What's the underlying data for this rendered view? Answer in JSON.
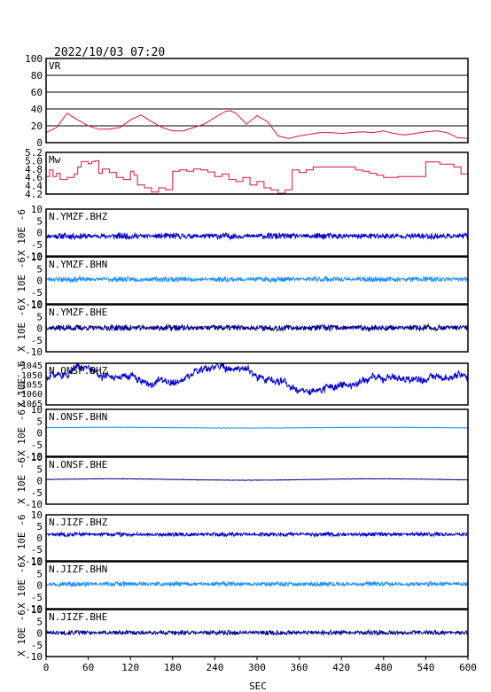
{
  "header": {
    "timestamp": "2022/10/03 07:20"
  },
  "xaxis": {
    "label": "SEC",
    "ticks": [
      0,
      60,
      120,
      180,
      240,
      300,
      360,
      420,
      480,
      540,
      600
    ]
  },
  "colors": {
    "vr": "#dc143c",
    "mw": "#dc143c",
    "dark_blue": "#00008b",
    "blue": "#0000cd",
    "light_blue": "#1e90ff",
    "frame": "#000000"
  },
  "chart_data": [
    {
      "type": "line",
      "title": "VR",
      "ylim": [
        0,
        100
      ],
      "grid": true,
      "y_ticks": [
        "100",
        "80",
        "60",
        "40",
        "20",
        "0"
      ],
      "x": [
        0,
        15,
        30,
        45,
        60,
        75,
        90,
        105,
        120,
        135,
        150,
        165,
        180,
        195,
        210,
        225,
        240,
        255,
        262,
        270,
        285,
        300,
        315,
        330,
        345,
        360,
        375,
        390,
        405,
        420,
        435,
        450,
        465,
        480,
        495,
        510,
        525,
        540,
        555,
        570,
        585,
        600
      ],
      "values": [
        12,
        18,
        35,
        27,
        20,
        16,
        16,
        18,
        27,
        33,
        25,
        18,
        14,
        14,
        18,
        22,
        30,
        37,
        38,
        35,
        22,
        32,
        25,
        8,
        5,
        8,
        10,
        12,
        12,
        11,
        12,
        13,
        12,
        14,
        11,
        9,
        11,
        13,
        14,
        12,
        6,
        5
      ],
      "series_name": "VR"
    },
    {
      "type": "line",
      "title": "Mw",
      "ylim": [
        4.2,
        5.2
      ],
      "grid": false,
      "y_ticks": [
        "5.2",
        "5.0",
        "4.8",
        "4.6",
        "4.4",
        "4.2"
      ],
      "x": [
        0,
        5,
        10,
        15,
        20,
        30,
        40,
        45,
        50,
        60,
        65,
        70,
        75,
        80,
        90,
        100,
        110,
        120,
        125,
        130,
        140,
        150,
        160,
        170,
        180,
        190,
        200,
        210,
        220,
        230,
        240,
        250,
        260,
        270,
        280,
        290,
        300,
        310,
        320,
        330,
        340,
        350,
        360,
        370,
        380,
        400,
        420,
        440,
        450,
        460,
        470,
        480,
        500,
        520,
        540,
        560,
        580,
        590,
        600
      ],
      "values": [
        4.62,
        4.78,
        4.62,
        4.7,
        4.55,
        4.6,
        4.68,
        4.85,
        4.98,
        4.93,
        4.98,
        5.0,
        4.7,
        4.8,
        4.72,
        4.6,
        4.55,
        4.75,
        4.65,
        4.42,
        4.35,
        4.25,
        4.35,
        4.3,
        4.75,
        4.78,
        4.75,
        4.8,
        4.78,
        4.73,
        4.62,
        4.68,
        4.55,
        4.5,
        4.6,
        4.42,
        4.5,
        4.35,
        4.3,
        4.22,
        4.3,
        4.78,
        4.72,
        4.78,
        4.85,
        4.85,
        4.85,
        4.78,
        4.75,
        4.7,
        4.65,
        4.6,
        4.62,
        4.62,
        4.97,
        4.92,
        4.85,
        4.68,
        4.72
      ],
      "series_name": "Mw"
    },
    {
      "type": "line",
      "title": "N.YMZF.BHZ",
      "ylabel": "X 10E -6",
      "ylim": [
        -10,
        10
      ],
      "y_ticks": [
        "10",
        "5",
        "0",
        "-5",
        "-10"
      ],
      "baseline": -1.5,
      "amplitude": 1.2,
      "seed": 11,
      "color_key": "blue"
    },
    {
      "type": "line",
      "title": "N.YMZF.BHN",
      "ylabel": "X 10E -6",
      "ylim": [
        -10,
        10
      ],
      "y_ticks": [
        "10",
        "5",
        "0",
        "-5",
        "-10"
      ],
      "baseline": 0.5,
      "amplitude": 1.0,
      "seed": 23,
      "color_key": "light_blue"
    },
    {
      "type": "line",
      "title": "N.YMZF.BHE",
      "ylabel": "X 10E -6",
      "ylim": [
        -10,
        10
      ],
      "y_ticks": [
        "10",
        "5",
        "0",
        "-5",
        "-10"
      ],
      "baseline": 0.2,
      "amplitude": 1.2,
      "seed": 37,
      "color_key": "dark_blue"
    },
    {
      "type": "line",
      "title": "N.ONSF.BHZ",
      "ylabel": "X 10E -6",
      "ylim": [
        -1066,
        -1044
      ],
      "y_ticks": [
        "-1045",
        "-1050",
        "-1055",
        "-1060",
        "-1065"
      ],
      "baseline": -1052,
      "amplitude": 5.0,
      "seed": 51,
      "color_key": "blue"
    },
    {
      "type": "line",
      "title": "N.ONSF.BHN",
      "ylabel": "X 10E -6",
      "ylim": [
        -10,
        10
      ],
      "y_ticks": [
        "10",
        "5",
        "0",
        "-5",
        "-10"
      ],
      "baseline": 2.2,
      "amplitude": 0.15,
      "seed": 61,
      "color_key": "light_blue"
    },
    {
      "type": "line",
      "title": "N.ONSF.BHE",
      "ylabel": "X 10E -6",
      "ylim": [
        -10,
        10
      ],
      "y_ticks": [
        "10",
        "5",
        "0",
        "-5",
        "-10"
      ],
      "baseline": 0.5,
      "amplitude": 0.3,
      "seed": 71,
      "color_key": "dark_blue"
    },
    {
      "type": "line",
      "title": "N.JIZF.BHZ",
      "ylabel": "X 10E -6",
      "ylim": [
        -10,
        10
      ],
      "y_ticks": [
        "10",
        "5",
        "0",
        "-5",
        "-10"
      ],
      "baseline": 1.5,
      "amplitude": 0.8,
      "seed": 83,
      "color_key": "blue"
    },
    {
      "type": "line",
      "title": "N.JIZF.BHN",
      "ylabel": "X 10E -6",
      "ylim": [
        -10,
        10
      ],
      "y_ticks": [
        "10",
        "5",
        "0",
        "-5",
        "-10"
      ],
      "baseline": 0.5,
      "amplitude": 0.9,
      "seed": 97,
      "color_key": "light_blue"
    },
    {
      "type": "line",
      "title": "N.JIZF.BHE",
      "ylabel": "X 10E -6",
      "ylim": [
        -10,
        10
      ],
      "y_ticks": [
        "10",
        "5",
        "0",
        "-5",
        "-10"
      ],
      "baseline": 0.2,
      "amplitude": 0.9,
      "seed": 101,
      "color_key": "dark_blue"
    }
  ]
}
